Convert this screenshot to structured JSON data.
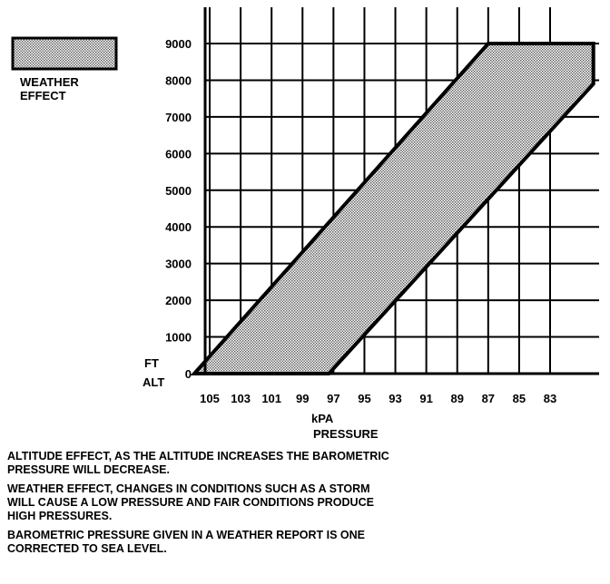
{
  "chart_data": {
    "type": "area",
    "x_tick_labels": [
      "105",
      "103",
      "101",
      "99",
      "97",
      "95",
      "93",
      "91",
      "89",
      "87",
      "85",
      "83"
    ],
    "y_tick_labels": [
      "0",
      "1000",
      "2000",
      "3000",
      "4000",
      "5000",
      "6000",
      "7000",
      "8000",
      "9000"
    ],
    "xlabel_unit": "kPA",
    "xlabel": "PRESSURE",
    "ylabel_top": "FT",
    "ylabel_bottom": "ALT",
    "xlim": [
      106,
      80
    ],
    "ylim": [
      -300,
      9800
    ],
    "x_reversed": true,
    "grid": true,
    "series": [
      {
        "name": "WEATHER EFFECT",
        "polygon": [
          {
            "x": 106,
            "y": 0
          },
          {
            "x": 97.3,
            "y": 0
          },
          {
            "x": 80.2,
            "y": 7900
          },
          {
            "x": 80.2,
            "y": 9000
          },
          {
            "x": 87,
            "y": 9000
          }
        ]
      }
    ]
  },
  "legend": {
    "line1": "WEATHER",
    "line2": "EFFECT"
  },
  "notes": [
    "ALTITUDE EFFECT, AS THE ALTITUDE INCREASES THE BAROMETRIC\nPRESSURE WILL DECREASE.",
    "WEATHER EFFECT, CHANGES IN CONDITIONS SUCH AS A STORM\nWILL CAUSE A LOW PRESSURE AND FAIR CONDITIONS PRODUCE\nHIGH PRESSURES.",
    "BAROMETRIC PRESSURE GIVEN IN A WEATHER REPORT IS ONE\nCORRECTED TO SEA LEVEL."
  ],
  "colors": {
    "band_fill": "#bdbdbd",
    "ink": "#000000"
  }
}
